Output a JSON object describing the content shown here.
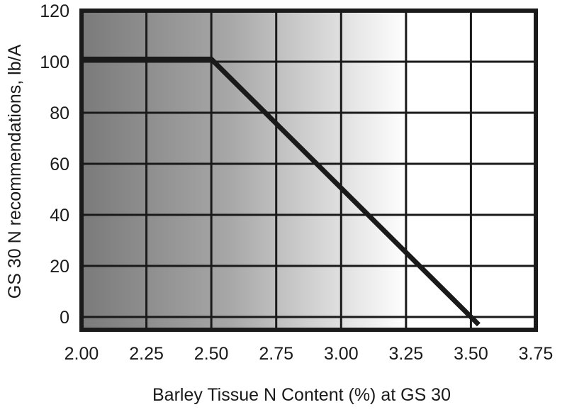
{
  "chart_data": {
    "type": "line",
    "title": "",
    "xlabel": "Barley Tissue N Content (%) at GS 30",
    "ylabel": "GS 30 N recommendations, lb/A",
    "xlim": [
      2.0,
      3.75
    ],
    "ylim": [
      -5,
      120
    ],
    "x_ticks": [
      2.0,
      2.25,
      2.5,
      2.75,
      3.0,
      3.25,
      3.5,
      3.75
    ],
    "x_tick_labels": [
      "2.00",
      "2.25",
      "2.50",
      "2.75",
      "3.00",
      "3.25",
      "3.50",
      "3.75"
    ],
    "y_ticks": [
      0,
      20,
      40,
      60,
      80,
      100,
      120
    ],
    "y_tick_labels": [
      "0",
      "20",
      "40",
      "60",
      "80",
      "100",
      "120"
    ],
    "grid": true,
    "legend": "none",
    "background": "horizontal gradient from dark gray at left to white near 3.00",
    "series": [
      {
        "x": [
          2.0,
          2.5,
          3.53
        ],
        "y": [
          101,
          101,
          -3
        ],
        "color": "#1a1a1a"
      }
    ]
  }
}
